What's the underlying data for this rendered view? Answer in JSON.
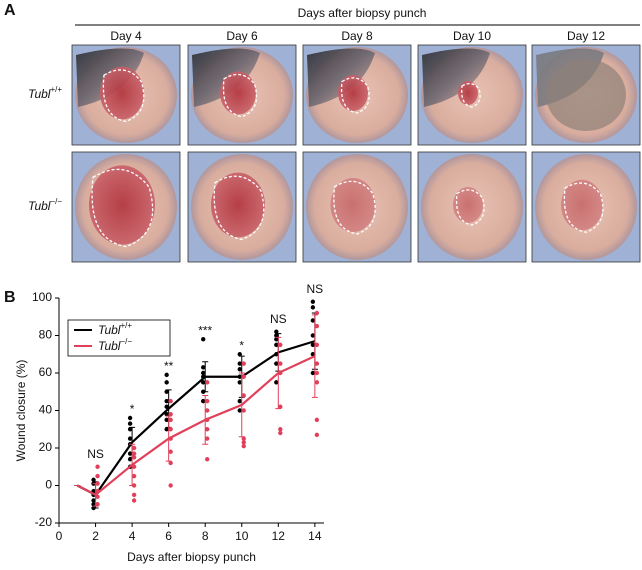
{
  "figure": {
    "panel_a": {
      "label": "A",
      "header": "Days after biopsy punch",
      "days": [
        "Day 4",
        "Day 6",
        "Day 8",
        "Day 10",
        "Day 12"
      ],
      "rows": [
        "Tubl+/+",
        "Tubl−/−"
      ]
    },
    "panel_b": {
      "label": "B"
    }
  },
  "chart_data": {
    "type": "line",
    "xlabel": "Days after biopsy punch",
    "ylabel": "Wound closure (%)",
    "xlim": [
      0,
      14.5
    ],
    "xticks": [
      0,
      2,
      4,
      6,
      8,
      10,
      12,
      14
    ],
    "ylim": [
      -20,
      100
    ],
    "yticks": [
      -20,
      0,
      20,
      40,
      60,
      80,
      100
    ],
    "legend": "upper left",
    "series": [
      {
        "name": "Tubl+/+",
        "color": "#000000",
        "x": [
          1,
          2,
          4,
          6,
          8,
          10,
          12,
          14
        ],
        "values": [
          0,
          -5,
          23,
          41,
          58,
          58,
          71,
          77
        ],
        "errors": [
          0,
          7,
          8,
          10,
          8,
          11,
          10,
          15
        ],
        "points": [
          [],
          [
            -12,
            -10,
            -8,
            -5,
            -3,
            1,
            3
          ],
          [
            10,
            14,
            17,
            22,
            25,
            30,
            33,
            36
          ],
          [
            30,
            35,
            38,
            42,
            45,
            50,
            55,
            59
          ],
          [
            45,
            50,
            55,
            58,
            60,
            63,
            78
          ],
          [
            40,
            45,
            55,
            58,
            62,
            65,
            70
          ],
          [
            55,
            65,
            70,
            75,
            78,
            80,
            82
          ],
          [
            60,
            70,
            75,
            80,
            88,
            95,
            98
          ]
        ]
      },
      {
        "name": "Tubl−/−",
        "color": "#e0405a",
        "x": [
          1,
          2,
          4,
          6,
          8,
          10,
          12,
          14
        ],
        "values": [
          0,
          -5,
          11,
          25,
          35,
          43,
          60,
          69
        ],
        "errors": [
          0,
          6,
          11,
          12,
          13,
          17,
          19,
          22
        ],
        "points": [
          [],
          [
            -10,
            -6,
            -3,
            1,
            5,
            10
          ],
          [
            -8,
            -5,
            0,
            5,
            10,
            15,
            17,
            20
          ],
          [
            0,
            12,
            18,
            25,
            30,
            35,
            38,
            45
          ],
          [
            14,
            25,
            30,
            35,
            40,
            45,
            55
          ],
          [
            21,
            23,
            25,
            40,
            48,
            58,
            65
          ],
          [
            28,
            30,
            42,
            60,
            65,
            75
          ],
          [
            27,
            35,
            55,
            60,
            65,
            75,
            85,
            92
          ]
        ]
      }
    ],
    "annotations": [
      {
        "x": 2,
        "text": "NS"
      },
      {
        "x": 4,
        "text": "*"
      },
      {
        "x": 6,
        "text": "**"
      },
      {
        "x": 8,
        "text": "***"
      },
      {
        "x": 10,
        "text": "*"
      },
      {
        "x": 12,
        "text": "NS"
      },
      {
        "x": 14,
        "text": "NS"
      }
    ]
  }
}
